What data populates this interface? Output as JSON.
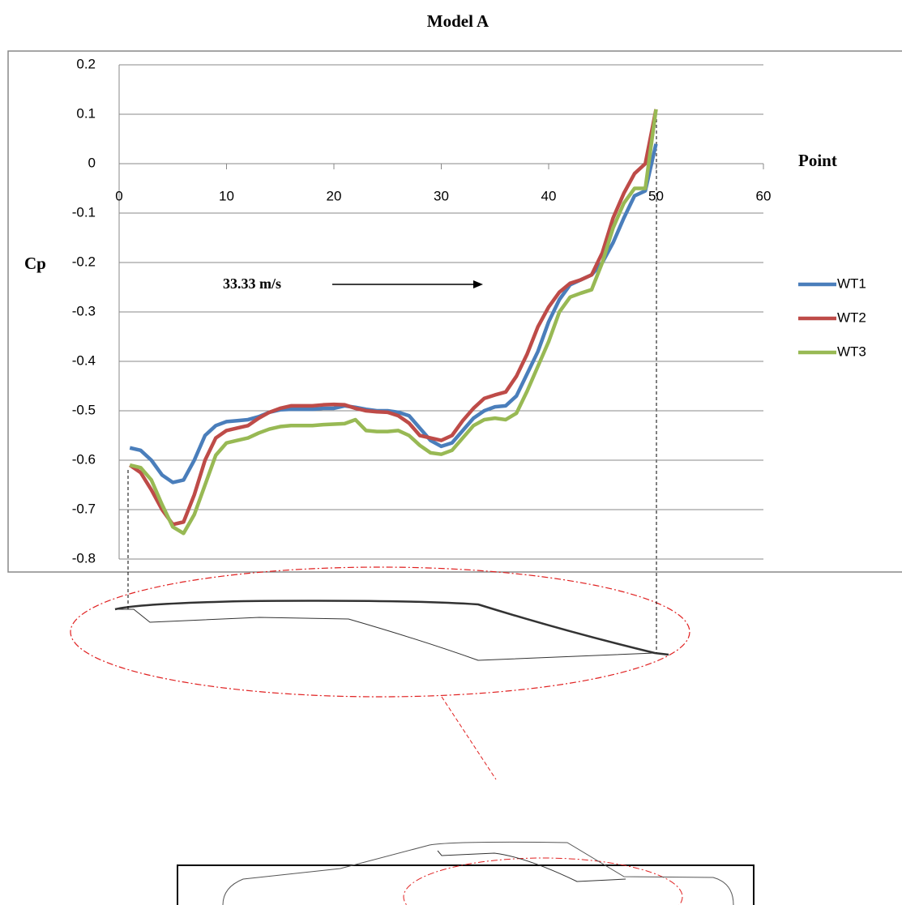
{
  "chart_data": {
    "type": "line",
    "title": "Model A",
    "x_label": "Point",
    "y_label": "Cp",
    "annotation": "33.33 m/s",
    "x": [
      1,
      2,
      3,
      4,
      5,
      6,
      7,
      8,
      9,
      10,
      11,
      12,
      13,
      14,
      15,
      16,
      17,
      18,
      19,
      20,
      21,
      22,
      23,
      24,
      25,
      26,
      27,
      28,
      29,
      30,
      31,
      32,
      33,
      34,
      35,
      36,
      37,
      38,
      39,
      40,
      41,
      42,
      43,
      44,
      45,
      46,
      47,
      48,
      49,
      50
    ],
    "series": [
      {
        "name": "WT1",
        "color": "#4a7ebb",
        "values": [
          -0.575,
          -0.58,
          -0.6,
          -0.63,
          -0.645,
          -0.64,
          -0.6,
          -0.55,
          -0.53,
          -0.522,
          -0.52,
          -0.518,
          -0.512,
          -0.503,
          -0.498,
          -0.497,
          -0.497,
          -0.497,
          -0.495,
          -0.495,
          -0.49,
          -0.493,
          -0.497,
          -0.5,
          -0.5,
          -0.503,
          -0.51,
          -0.535,
          -0.56,
          -0.572,
          -0.565,
          -0.54,
          -0.515,
          -0.5,
          -0.492,
          -0.49,
          -0.47,
          -0.425,
          -0.38,
          -0.32,
          -0.275,
          -0.245,
          -0.235,
          -0.225,
          -0.2,
          -0.16,
          -0.11,
          -0.065,
          -0.055,
          0.04
        ]
      },
      {
        "name": "WT2",
        "color": "#be4b48",
        "values": [
          -0.61,
          -0.625,
          -0.66,
          -0.7,
          -0.73,
          -0.725,
          -0.67,
          -0.6,
          -0.555,
          -0.54,
          -0.535,
          -0.53,
          -0.515,
          -0.503,
          -0.495,
          -0.49,
          -0.49,
          -0.49,
          -0.488,
          -0.487,
          -0.488,
          -0.495,
          -0.5,
          -0.502,
          -0.503,
          -0.51,
          -0.525,
          -0.55,
          -0.555,
          -0.56,
          -0.55,
          -0.52,
          -0.495,
          -0.475,
          -0.468,
          -0.462,
          -0.43,
          -0.385,
          -0.33,
          -0.29,
          -0.26,
          -0.242,
          -0.235,
          -0.225,
          -0.18,
          -0.11,
          -0.06,
          -0.02,
          0.0,
          0.11
        ]
      },
      {
        "name": "WT3",
        "color": "#98b954",
        "values": [
          -0.61,
          -0.615,
          -0.64,
          -0.69,
          -0.735,
          -0.748,
          -0.71,
          -0.65,
          -0.59,
          -0.565,
          -0.56,
          -0.555,
          -0.545,
          -0.537,
          -0.532,
          -0.53,
          -0.53,
          -0.53,
          -0.528,
          -0.527,
          -0.526,
          -0.518,
          -0.54,
          -0.542,
          -0.542,
          -0.54,
          -0.55,
          -0.57,
          -0.585,
          -0.588,
          -0.58,
          -0.555,
          -0.53,
          -0.518,
          -0.515,
          -0.518,
          -0.505,
          -0.46,
          -0.41,
          -0.36,
          -0.3,
          -0.27,
          -0.262,
          -0.255,
          -0.2,
          -0.13,
          -0.08,
          -0.05,
          -0.05,
          0.11
        ]
      }
    ],
    "xlim": [
      0,
      60
    ],
    "xticks": [
      0,
      10,
      20,
      30,
      40,
      50,
      60
    ],
    "ylim": [
      -0.8,
      0.2
    ],
    "yticks": [
      -0.8,
      -0.7,
      -0.6,
      -0.5,
      -0.4,
      -0.3,
      -0.2,
      -0.1,
      0,
      0.1,
      0.2
    ],
    "grid": true,
    "legend": "right"
  }
}
